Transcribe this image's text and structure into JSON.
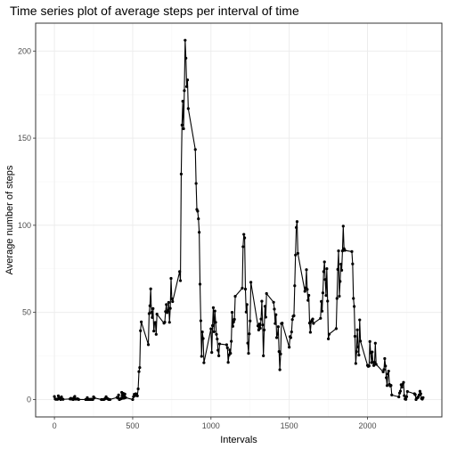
{
  "chart_data": {
    "type": "line",
    "title": "Time series plot of average steps per interval of time",
    "xlabel": "Intervals",
    "ylabel": "Average number of steps",
    "xlim": [
      -120,
      2475
    ],
    "ylim": [
      -10,
      216
    ],
    "xticks": [
      0,
      500,
      1000,
      1500,
      2000
    ],
    "yticks": [
      0,
      50,
      100,
      150,
      200
    ],
    "grid": true,
    "legend": "none",
    "line_color": "#000000",
    "point_color": "#000000",
    "series": [
      {
        "points": [
          [
            0,
            1.7
          ],
          [
            5,
            0.3
          ],
          [
            10,
            0.1
          ],
          [
            15,
            0.2
          ],
          [
            20,
            0.1
          ],
          [
            25,
            2.1
          ],
          [
            30,
            0.5
          ],
          [
            35,
            0.9
          ],
          [
            40,
            0
          ],
          [
            45,
            1.5
          ],
          [
            50,
            0.3
          ],
          [
            55,
            0.1
          ],
          [
            100,
            0.3
          ],
          [
            105,
            0.7
          ],
          [
            110,
            0.2
          ],
          [
            115,
            0.3
          ],
          [
            120,
            0
          ],
          [
            125,
            1.1
          ],
          [
            130,
            1.8
          ],
          [
            135,
            0.2
          ],
          [
            140,
            0.2
          ],
          [
            145,
            0.4
          ],
          [
            150,
            0.3
          ],
          [
            155,
            0
          ],
          [
            200,
            0
          ],
          [
            205,
            0
          ],
          [
            210,
            1.1
          ],
          [
            215,
            0
          ],
          [
            220,
            0
          ],
          [
            225,
            0.1
          ],
          [
            230,
            0
          ],
          [
            235,
            0.2
          ],
          [
            240,
            0
          ],
          [
            245,
            0
          ],
          [
            250,
            1.5
          ],
          [
            255,
            0.9
          ],
          [
            300,
            0
          ],
          [
            305,
            0
          ],
          [
            310,
            0
          ],
          [
            315,
            0
          ],
          [
            320,
            0.2
          ],
          [
            325,
            0.6
          ],
          [
            330,
            1.6
          ],
          [
            335,
            0.6
          ],
          [
            340,
            0.5
          ],
          [
            345,
            0.1
          ],
          [
            350,
            0
          ],
          [
            355,
            0
          ],
          [
            400,
            1.2
          ],
          [
            405,
            0.9
          ],
          [
            410,
            2.6
          ],
          [
            415,
            0
          ],
          [
            420,
            0.3
          ],
          [
            425,
            0.4
          ],
          [
            430,
            4.1
          ],
          [
            435,
            0.7
          ],
          [
            440,
            3.5
          ],
          [
            445,
            0.8
          ],
          [
            450,
            3.1
          ],
          [
            455,
            1.1
          ],
          [
            500,
            0
          ],
          [
            505,
            1.6
          ],
          [
            510,
            3.0
          ],
          [
            515,
            2.2
          ],
          [
            520,
            3.3
          ],
          [
            525,
            3.0
          ],
          [
            530,
            2.1
          ],
          [
            535,
            6.1
          ],
          [
            540,
            16.0
          ],
          [
            545,
            18.3
          ],
          [
            550,
            39.5
          ],
          [
            555,
            44.5
          ],
          [
            600,
            31.5
          ],
          [
            605,
            49.3
          ],
          [
            610,
            53.8
          ],
          [
            615,
            63.5
          ],
          [
            620,
            50.0
          ],
          [
            625,
            47.1
          ],
          [
            630,
            52.2
          ],
          [
            635,
            39.3
          ],
          [
            640,
            44.0
          ],
          [
            645,
            44.2
          ],
          [
            650,
            37.4
          ],
          [
            655,
            49.0
          ],
          [
            700,
            43.8
          ],
          [
            705,
            44.4
          ],
          [
            710,
            50.5
          ],
          [
            715,
            54.5
          ],
          [
            720,
            49.9
          ],
          [
            725,
            50.9
          ],
          [
            730,
            55.7
          ],
          [
            735,
            44.3
          ],
          [
            740,
            52.3
          ],
          [
            745,
            69.5
          ],
          [
            750,
            57.8
          ],
          [
            755,
            56.2
          ],
          [
            800,
            73.4
          ],
          [
            805,
            68.2
          ],
          [
            810,
            129.4
          ],
          [
            815,
            157.5
          ],
          [
            820,
            171.2
          ],
          [
            825,
            155.4
          ],
          [
            830,
            177.3
          ],
          [
            835,
            206.2
          ],
          [
            840,
            195.9
          ],
          [
            845,
            179.6
          ],
          [
            850,
            183.4
          ],
          [
            855,
            167.0
          ],
          [
            900,
            143.5
          ],
          [
            905,
            124.0
          ],
          [
            910,
            109.1
          ],
          [
            915,
            108.1
          ],
          [
            920,
            103.7
          ],
          [
            925,
            96.0
          ],
          [
            930,
            66.2
          ],
          [
            935,
            45.2
          ],
          [
            940,
            24.8
          ],
          [
            945,
            38.8
          ],
          [
            950,
            35.0
          ],
          [
            955,
            21.1
          ],
          [
            1000,
            40.6
          ],
          [
            1005,
            27.0
          ],
          [
            1010,
            42.4
          ],
          [
            1015,
            52.7
          ],
          [
            1020,
            38.9
          ],
          [
            1025,
            50.8
          ],
          [
            1030,
            44.3
          ],
          [
            1035,
            37.4
          ],
          [
            1040,
            34.7
          ],
          [
            1045,
            28.3
          ],
          [
            1050,
            25.1
          ],
          [
            1055,
            31.9
          ],
          [
            1100,
            31.4
          ],
          [
            1105,
            29.7
          ],
          [
            1110,
            21.3
          ],
          [
            1115,
            25.5
          ],
          [
            1120,
            28.4
          ],
          [
            1125,
            26.5
          ],
          [
            1130,
            33.4
          ],
          [
            1135,
            50.0
          ],
          [
            1140,
            42.0
          ],
          [
            1145,
            44.6
          ],
          [
            1150,
            46.0
          ],
          [
            1155,
            59.2
          ],
          [
            1200,
            63.9
          ],
          [
            1205,
            87.7
          ],
          [
            1210,
            94.8
          ],
          [
            1215,
            92.8
          ],
          [
            1220,
            63.4
          ],
          [
            1225,
            50.2
          ],
          [
            1230,
            54.5
          ],
          [
            1235,
            32.4
          ],
          [
            1240,
            26.5
          ],
          [
            1245,
            37.7
          ],
          [
            1250,
            45.1
          ],
          [
            1255,
            67.3
          ],
          [
            1300,
            42.3
          ],
          [
            1305,
            39.9
          ],
          [
            1310,
            43.3
          ],
          [
            1315,
            40.9
          ],
          [
            1320,
            46.2
          ],
          [
            1325,
            56.4
          ],
          [
            1330,
            42.8
          ],
          [
            1335,
            25.1
          ],
          [
            1340,
            39.9
          ],
          [
            1345,
            53.5
          ],
          [
            1350,
            47.3
          ],
          [
            1355,
            60.8
          ],
          [
            1400,
            55.8
          ],
          [
            1405,
            51.9
          ],
          [
            1410,
            43.6
          ],
          [
            1415,
            48.7
          ],
          [
            1420,
            35.5
          ],
          [
            1425,
            37.5
          ],
          [
            1430,
            41.8
          ],
          [
            1435,
            27.5
          ],
          [
            1440,
            17.1
          ],
          [
            1445,
            26.1
          ],
          [
            1450,
            43.6
          ],
          [
            1455,
            43.8
          ],
          [
            1500,
            30.0
          ],
          [
            1505,
            36.1
          ],
          [
            1510,
            35.5
          ],
          [
            1515,
            38.8
          ],
          [
            1520,
            45.9
          ],
          [
            1525,
            47.8
          ],
          [
            1530,
            48.1
          ],
          [
            1535,
            65.3
          ],
          [
            1540,
            82.9
          ],
          [
            1545,
            98.7
          ],
          [
            1550,
            102.1
          ],
          [
            1555,
            83.9
          ],
          [
            1600,
            62.1
          ],
          [
            1605,
            64.1
          ],
          [
            1610,
            74.5
          ],
          [
            1615,
            63.2
          ],
          [
            1620,
            56.9
          ],
          [
            1625,
            59.8
          ],
          [
            1630,
            43.9
          ],
          [
            1635,
            38.6
          ],
          [
            1640,
            44.7
          ],
          [
            1645,
            45.5
          ],
          [
            1650,
            46.2
          ],
          [
            1655,
            43.7
          ],
          [
            1700,
            46.6
          ],
          [
            1705,
            56.3
          ],
          [
            1710,
            50.7
          ],
          [
            1715,
            61.2
          ],
          [
            1720,
            73.4
          ],
          [
            1725,
            79.0
          ],
          [
            1730,
            68.9
          ],
          [
            1735,
            59.7
          ],
          [
            1740,
            75.1
          ],
          [
            1745,
            56.5
          ],
          [
            1750,
            34.8
          ],
          [
            1755,
            37.5
          ],
          [
            1800,
            40.7
          ],
          [
            1805,
            58.0
          ],
          [
            1810,
            74.7
          ],
          [
            1815,
            85.3
          ],
          [
            1820,
            59.3
          ],
          [
            1825,
            67.8
          ],
          [
            1830,
            77.7
          ],
          [
            1835,
            74.2
          ],
          [
            1840,
            85.3
          ],
          [
            1845,
            99.5
          ],
          [
            1850,
            86.6
          ],
          [
            1855,
            85.6
          ],
          [
            1900,
            84.9
          ],
          [
            1905,
            77.8
          ],
          [
            1910,
            58.0
          ],
          [
            1915,
            53.4
          ],
          [
            1920,
            36.3
          ],
          [
            1925,
            20.7
          ],
          [
            1930,
            27.4
          ],
          [
            1935,
            40.0
          ],
          [
            1940,
            30.2
          ],
          [
            1945,
            25.5
          ],
          [
            1950,
            45.7
          ],
          [
            1955,
            33.5
          ],
          [
            2000,
            19.6
          ],
          [
            2005,
            19.0
          ],
          [
            2010,
            19.3
          ],
          [
            2015,
            33.3
          ],
          [
            2020,
            26.8
          ],
          [
            2025,
            21.2
          ],
          [
            2030,
            27.3
          ],
          [
            2035,
            21.3
          ],
          [
            2040,
            19.5
          ],
          [
            2045,
            21.3
          ],
          [
            2050,
            32.3
          ],
          [
            2055,
            20.2
          ],
          [
            2100,
            15.9
          ],
          [
            2105,
            17.2
          ],
          [
            2110,
            23.5
          ],
          [
            2115,
            19.2
          ],
          [
            2120,
            12.5
          ],
          [
            2125,
            8.0
          ],
          [
            2130,
            14.7
          ],
          [
            2135,
            16.3
          ],
          [
            2140,
            8.7
          ],
          [
            2145,
            7.8
          ],
          [
            2150,
            8.1
          ],
          [
            2155,
            2.6
          ],
          [
            2200,
            1.5
          ],
          [
            2205,
            3.7
          ],
          [
            2210,
            4.8
          ],
          [
            2215,
            8.5
          ],
          [
            2220,
            7.1
          ],
          [
            2225,
            8.7
          ],
          [
            2230,
            9.8
          ],
          [
            2235,
            2.2
          ],
          [
            2240,
            0.3
          ],
          [
            2245,
            0.1
          ],
          [
            2250,
            1.6
          ],
          [
            2255,
            4.6
          ],
          [
            2300,
            3.3
          ],
          [
            2305,
            2.8
          ],
          [
            2310,
            0
          ],
          [
            2315,
            0.8
          ],
          [
            2320,
            1.0
          ],
          [
            2325,
            1.6
          ],
          [
            2330,
            2.6
          ],
          [
            2335,
            4.7
          ],
          [
            2340,
            3.3
          ],
          [
            2345,
            0.6
          ],
          [
            2350,
            0.2
          ],
          [
            2355,
            1.1
          ]
        ]
      }
    ]
  }
}
